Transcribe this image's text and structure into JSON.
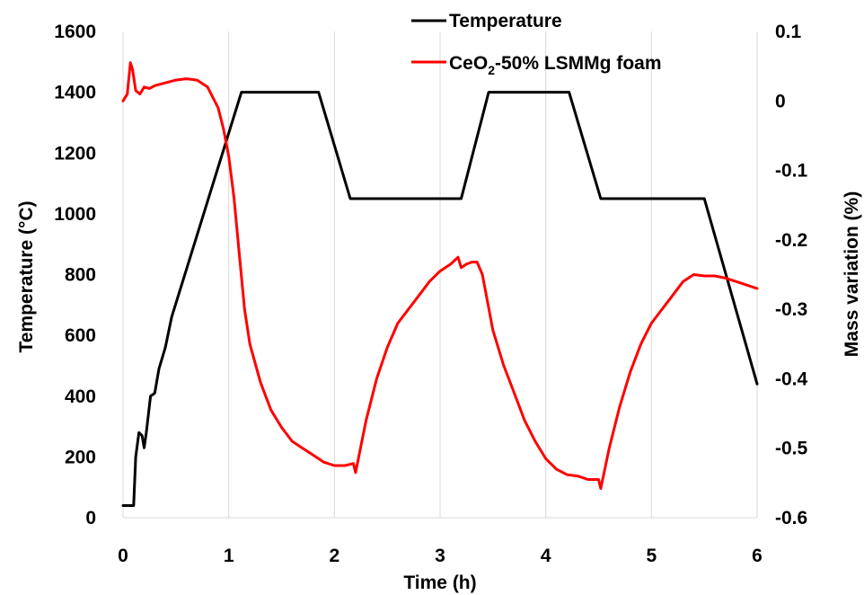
{
  "chart_data": {
    "type": "line",
    "xlabel": "Time (h)",
    "ylabel": "Temperature (°C)",
    "y2label": "Mass variation (%)",
    "xlim": [
      0,
      6
    ],
    "ylim": [
      0,
      1600
    ],
    "y2lim": [
      -0.6,
      0.1
    ],
    "xticks": [
      "0",
      "1",
      "2",
      "3",
      "4",
      "5",
      "6"
    ],
    "yticks": [
      "0",
      "200",
      "400",
      "600",
      "800",
      "1000",
      "1200",
      "1400",
      "1600"
    ],
    "y2ticks": [
      "0.1",
      "0",
      "-0.1",
      "-0.2",
      "-0.3",
      "-0.4",
      "-0.5",
      "-0.6"
    ],
    "grid": "vertical",
    "legend_position": "top-right",
    "series": [
      {
        "name": "Temperature",
        "axis": "left",
        "color": "#000000",
        "x": [
          0,
          0.1,
          0.12,
          0.15,
          0.18,
          0.2,
          0.22,
          0.26,
          0.3,
          0.34,
          0.4,
          0.46,
          1.12,
          1.85,
          2.15,
          2.2,
          3.2,
          3.46,
          4.22,
          4.52,
          4.57,
          5.5,
          6.0
        ],
        "y": [
          40,
          40,
          200,
          280,
          270,
          230,
          280,
          400,
          410,
          490,
          560,
          660,
          1400,
          1400,
          1050,
          1050,
          1050,
          1400,
          1400,
          1050,
          1050,
          1050,
          440
        ]
      },
      {
        "name": "CeO2-50% LSMMg foam",
        "legend_label_main": "CeO",
        "legend_label_sub": "2",
        "legend_label_rest": "-50% LSMMg foam",
        "axis": "right",
        "color": "#ff0000",
        "x": [
          0,
          0.04,
          0.07,
          0.09,
          0.12,
          0.16,
          0.2,
          0.25,
          0.3,
          0.4,
          0.5,
          0.6,
          0.7,
          0.8,
          0.9,
          0.95,
          1.0,
          1.05,
          1.1,
          1.15,
          1.2,
          1.3,
          1.4,
          1.5,
          1.6,
          1.7,
          1.8,
          1.9,
          2.0,
          2.1,
          2.18,
          2.2,
          2.3,
          2.4,
          2.5,
          2.6,
          2.7,
          2.8,
          2.9,
          3.0,
          3.1,
          3.17,
          3.2,
          3.25,
          3.3,
          3.35,
          3.4,
          3.5,
          3.6,
          3.7,
          3.8,
          3.9,
          4.0,
          4.1,
          4.2,
          4.3,
          4.4,
          4.5,
          4.52,
          4.6,
          4.7,
          4.8,
          4.9,
          5.0,
          5.1,
          5.2,
          5.3,
          5.4,
          5.5,
          5.6,
          5.7,
          5.8,
          5.9,
          6.0
        ],
        "y": [
          0.0,
          0.01,
          0.055,
          0.045,
          0.015,
          0.01,
          0.02,
          0.018,
          0.022,
          0.026,
          0.03,
          0.032,
          0.03,
          0.02,
          -0.01,
          -0.04,
          -0.08,
          -0.14,
          -0.22,
          -0.3,
          -0.35,
          -0.405,
          -0.445,
          -0.47,
          -0.49,
          -0.5,
          -0.51,
          -0.52,
          -0.525,
          -0.525,
          -0.522,
          -0.535,
          -0.46,
          -0.4,
          -0.355,
          -0.32,
          -0.3,
          -0.28,
          -0.26,
          -0.245,
          -0.235,
          -0.225,
          -0.24,
          -0.235,
          -0.232,
          -0.232,
          -0.25,
          -0.33,
          -0.38,
          -0.42,
          -0.46,
          -0.49,
          -0.515,
          -0.53,
          -0.538,
          -0.54,
          -0.545,
          -0.545,
          -0.558,
          -0.5,
          -0.44,
          -0.39,
          -0.35,
          -0.32,
          -0.3,
          -0.28,
          -0.26,
          -0.25,
          -0.252,
          -0.252,
          -0.255,
          -0.26,
          -0.265,
          -0.27
        ]
      }
    ]
  }
}
